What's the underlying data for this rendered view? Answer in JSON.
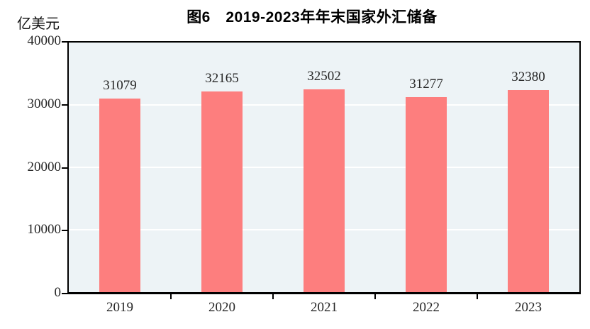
{
  "chart_data": {
    "type": "bar",
    "title": "图6　2019-2023年年末国家外汇储备",
    "unit_label": "亿美元",
    "categories": [
      "2019",
      "2020",
      "2021",
      "2022",
      "2023"
    ],
    "values": [
      31079,
      32165,
      32502,
      31277,
      32380
    ],
    "value_labels": [
      "31079",
      "32165",
      "32502",
      "31277",
      "32380"
    ],
    "ylim": [
      0,
      40000
    ],
    "yticks": [
      0,
      10000,
      20000,
      30000,
      40000
    ],
    "ytick_labels": [
      "0",
      "10000",
      "20000",
      "30000",
      "40000"
    ],
    "grid": "horizontal-white-lines",
    "legend": "none",
    "colors": {
      "bar": "#fd7e7e",
      "plot_background": "#edf3f6",
      "gridline": "#ffffff",
      "axis": "#000000",
      "text": "#262626",
      "title_text": "#000000",
      "page_background": "#ffffff"
    }
  }
}
